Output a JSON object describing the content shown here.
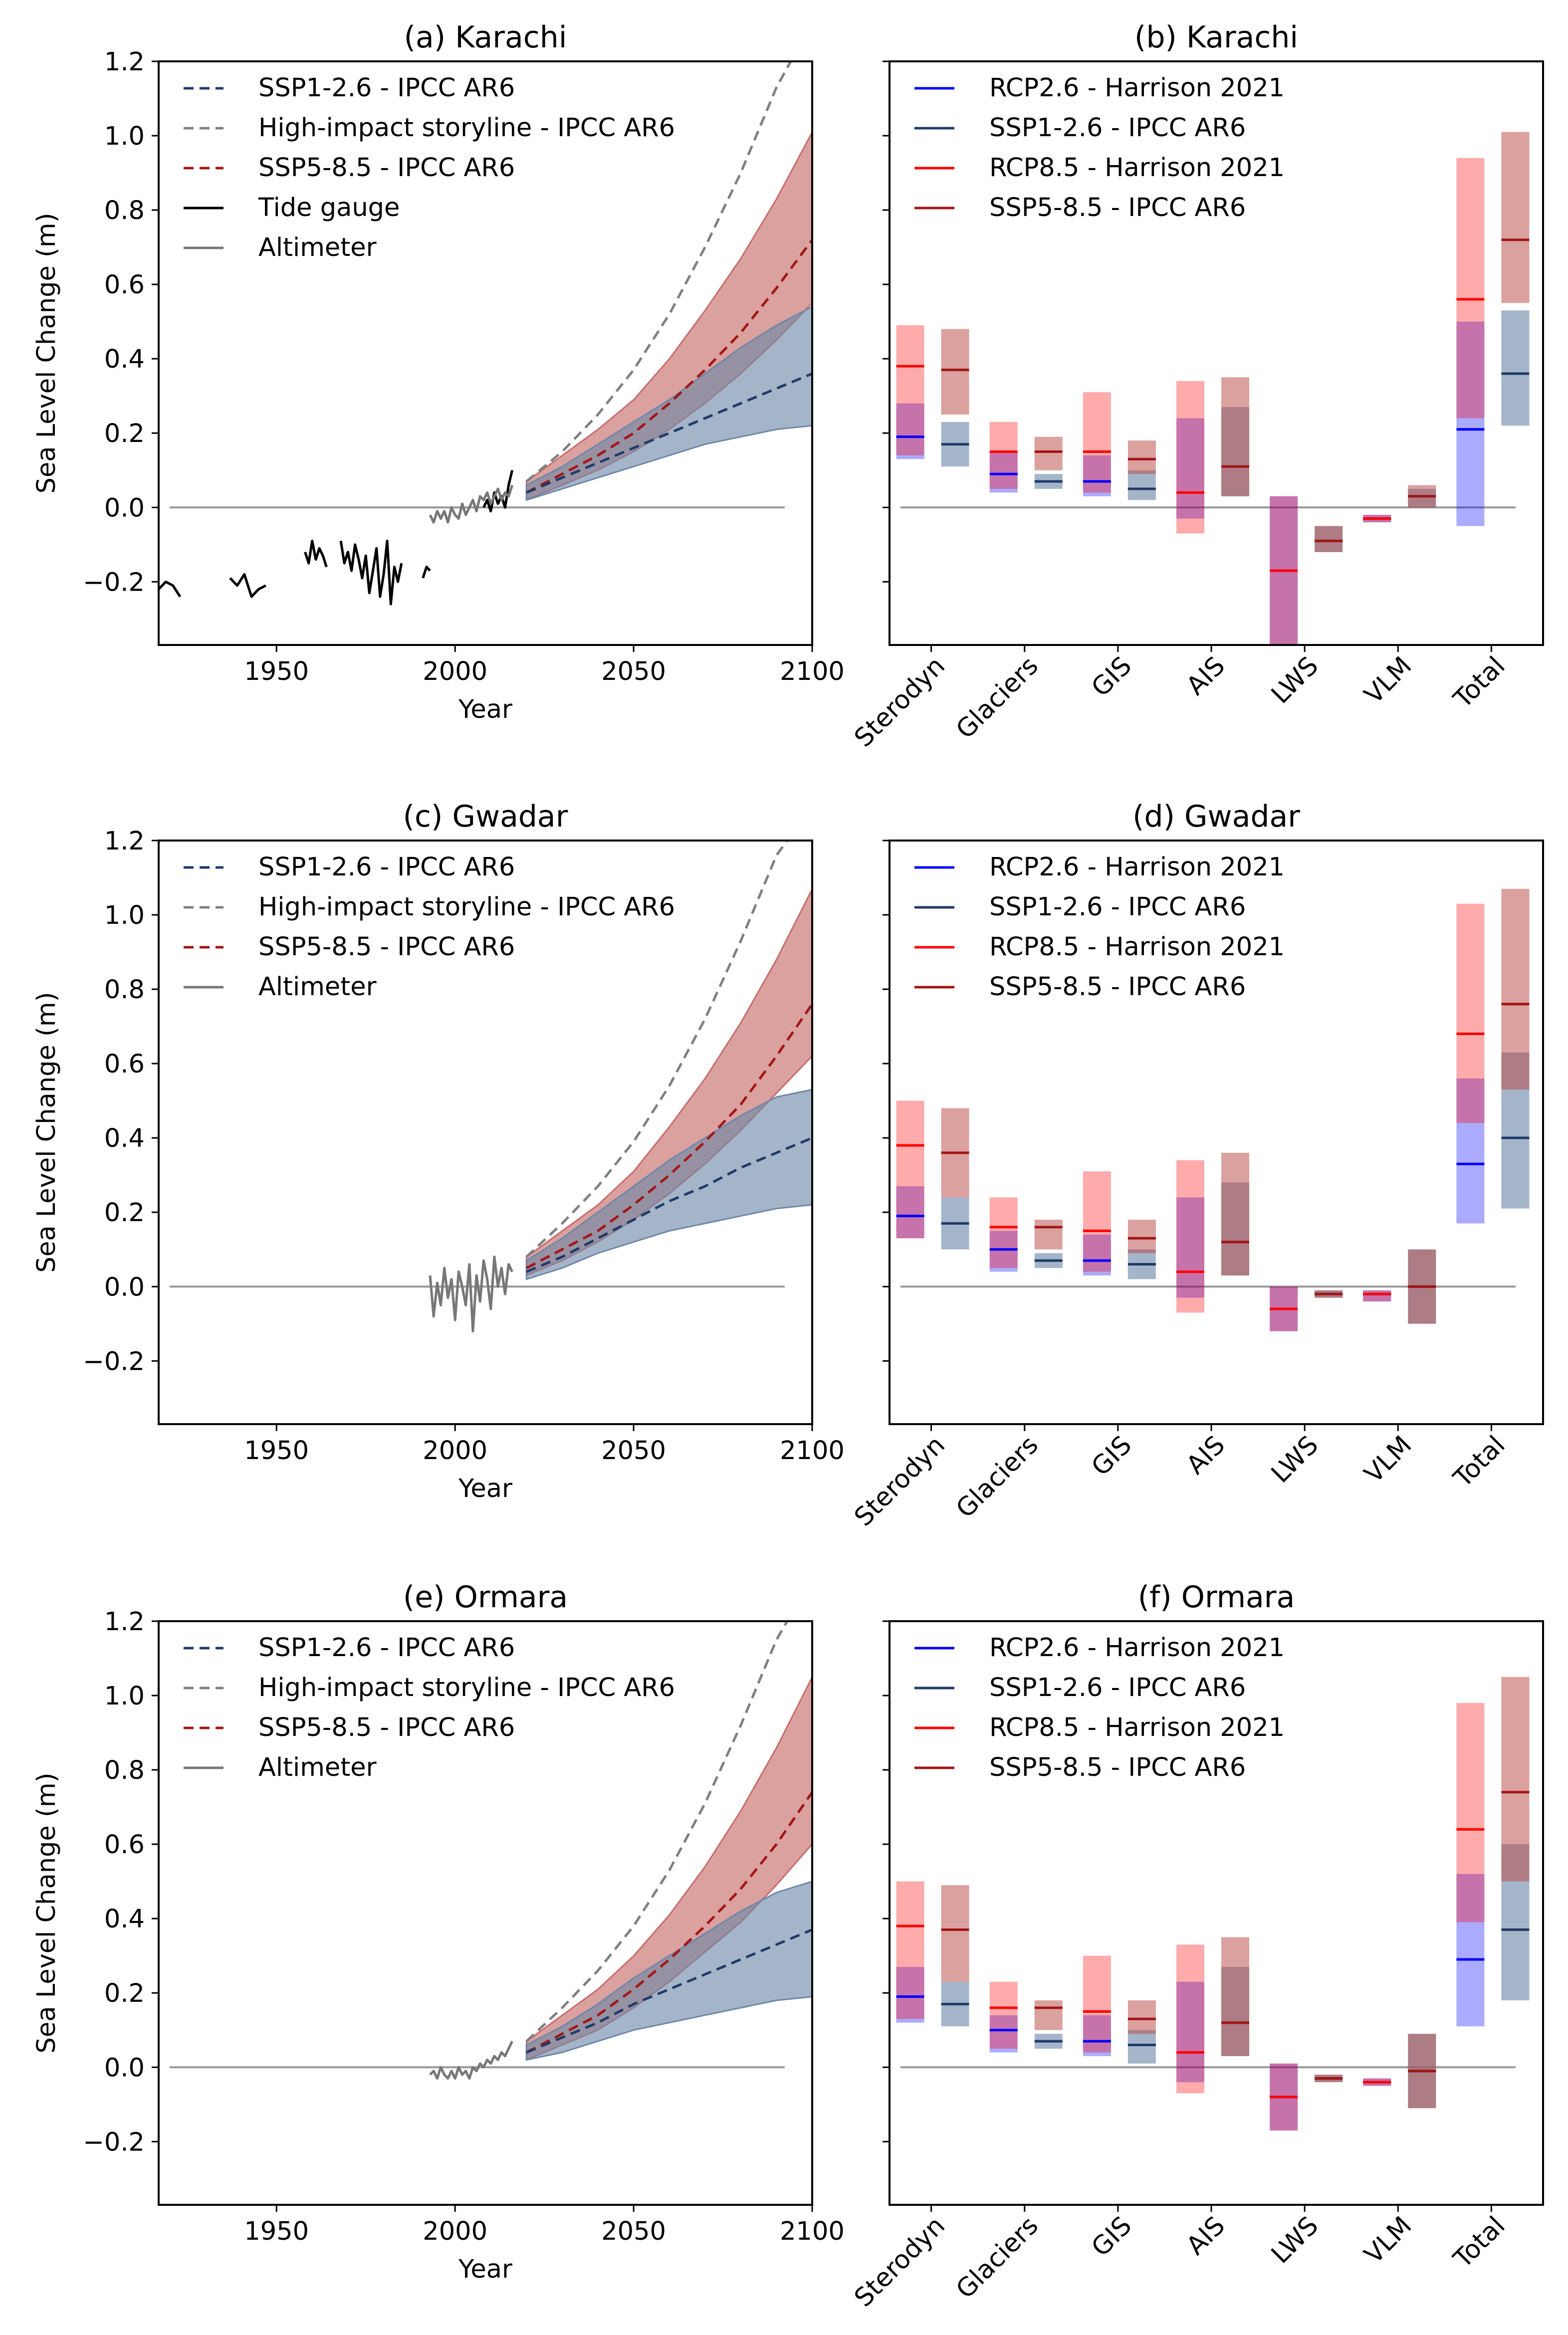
{
  "figure": {
    "ylabel": "Sea Level Change (m)",
    "xlabel": "Year",
    "yticks": [
      "1.2",
      "1.0",
      "0.8",
      "0.6",
      "0.4",
      "0.2",
      "0.0",
      "−0.2"
    ],
    "xticks": [
      "1950",
      "2000",
      "2050",
      "2100"
    ],
    "categories": [
      "Sterodyn",
      "Glaciers",
      "GIS",
      "AIS",
      "LWS",
      "VLM",
      "Total"
    ]
  },
  "colors": {
    "ssp126_line": "#1f3a68",
    "ssp126_fill": "#6d87a8",
    "ssp585_line": "#a31515",
    "ssp585_fill": "#b5443f",
    "highimpact": "#808080",
    "tide": "#000000",
    "altimeter": "#777777",
    "rcp26": "#0000ff",
    "rcp85": "#ff0000",
    "zero": "#999999"
  },
  "chart_data": [
    {
      "type": "line",
      "title": "(a) Karachi",
      "xlabel": "Year",
      "ylabel": "Sea Level Change (m)",
      "xlim": [
        1917,
        2100
      ],
      "ylim": [
        -0.37,
        1.2
      ],
      "legend": [
        "SSP1-2.6 - IPCC AR6",
        "High-impact storyline - IPCC AR6",
        "SSP5-8.5 - IPCC AR6",
        "Tide gauge",
        "Altimeter"
      ],
      "x": [
        2020,
        2030,
        2040,
        2050,
        2060,
        2070,
        2080,
        2090,
        2100
      ],
      "ssp126": {
        "median": [
          0.04,
          0.08,
          0.12,
          0.16,
          0.2,
          0.24,
          0.28,
          0.32,
          0.36
        ],
        "low": [
          0.02,
          0.05,
          0.08,
          0.11,
          0.14,
          0.17,
          0.19,
          0.21,
          0.22
        ],
        "high": [
          0.06,
          0.11,
          0.17,
          0.23,
          0.29,
          0.36,
          0.43,
          0.49,
          0.54
        ]
      },
      "ssp585": {
        "median": [
          0.04,
          0.09,
          0.14,
          0.2,
          0.28,
          0.37,
          0.47,
          0.59,
          0.72
        ],
        "low": [
          0.02,
          0.06,
          0.1,
          0.15,
          0.21,
          0.28,
          0.36,
          0.45,
          0.55
        ],
        "high": [
          0.07,
          0.14,
          0.21,
          0.29,
          0.4,
          0.53,
          0.67,
          0.83,
          1.01
        ]
      },
      "high_impact": {
        "x": [
          2020,
          2030,
          2040,
          2050,
          2060,
          2070,
          2080,
          2090,
          2094
        ],
        "y": [
          0.07,
          0.15,
          0.25,
          0.37,
          0.52,
          0.7,
          0.9,
          1.13,
          1.2
        ]
      },
      "tide_gauge": [
        {
          "x": [
            1917,
            1919,
            1921,
            1923
          ],
          "y": [
            -0.22,
            -0.2,
            -0.21,
            -0.24
          ]
        },
        {
          "x": [
            1937,
            1939,
            1941,
            1943,
            1945,
            1947
          ],
          "y": [
            -0.19,
            -0.21,
            -0.18,
            -0.24,
            -0.22,
            -0.21
          ]
        },
        {
          "x": [
            1958,
            1959,
            1960,
            1961,
            1962,
            1963,
            1964
          ],
          "y": [
            -0.12,
            -0.15,
            -0.09,
            -0.14,
            -0.11,
            -0.13,
            -0.16
          ]
        },
        {
          "x": [
            1968,
            1969,
            1970,
            1971,
            1972,
            1973,
            1974,
            1975,
            1976,
            1977,
            1978,
            1979,
            1980,
            1981,
            1982,
            1983,
            1984,
            1985
          ],
          "y": [
            -0.09,
            -0.15,
            -0.12,
            -0.17,
            -0.1,
            -0.14,
            -0.19,
            -0.13,
            -0.23,
            -0.17,
            -0.11,
            -0.24,
            -0.18,
            -0.09,
            -0.26,
            -0.16,
            -0.2,
            -0.15
          ]
        },
        {
          "x": [
            1991,
            1992,
            1993
          ],
          "y": [
            -0.19,
            -0.16,
            -0.17
          ]
        },
        {
          "x": [
            2008,
            2009,
            2010,
            2011,
            2012,
            2013,
            2014,
            2015,
            2016
          ],
          "y": [
            0.0,
            0.02,
            -0.01,
            0.04,
            0.01,
            0.03,
            0.0,
            0.06,
            0.1
          ]
        }
      ],
      "altimeter": {
        "x": [
          1993,
          1994,
          1995,
          1996,
          1997,
          1998,
          1999,
          2000,
          2001,
          2002,
          2003,
          2004,
          2005,
          2006,
          2007,
          2008,
          2009,
          2010,
          2011,
          2012,
          2013,
          2014,
          2015,
          2016
        ],
        "y": [
          -0.02,
          -0.04,
          -0.01,
          -0.03,
          -0.01,
          -0.04,
          0.0,
          -0.02,
          -0.03,
          0.01,
          -0.02,
          0.0,
          0.02,
          -0.01,
          0.03,
          0.02,
          0.04,
          0.01,
          0.03,
          0.05,
          0.02,
          0.04,
          0.03,
          0.06
        ]
      }
    },
    {
      "type": "bar",
      "title": "(b) Karachi",
      "ylim": [
        -0.37,
        1.2
      ],
      "categories": [
        "Sterodyn",
        "Glaciers",
        "GIS",
        "AIS",
        "LWS",
        "VLM",
        "Total"
      ],
      "legend": [
        "RCP2.6 - Harrison 2021",
        "SSP1-2.6 - IPCC AR6",
        "RCP8.5 - Harrison 2021",
        "SSP5-8.5 - IPCC AR6"
      ],
      "series": [
        {
          "name": "RCP2.6 - Harrison 2021",
          "low": [
            0.13,
            0.04,
            0.03,
            -0.03,
            -0.37,
            -0.04,
            -0.05
          ],
          "median": [
            0.19,
            0.09,
            0.07,
            0.04,
            -0.17,
            -0.03,
            0.21
          ],
          "high": [
            0.28,
            0.15,
            0.14,
            0.24,
            0.03,
            -0.02,
            0.5
          ]
        },
        {
          "name": "SSP1-2.6 - IPCC AR6",
          "low": [
            0.11,
            0.05,
            0.02,
            0.03,
            -0.12,
            0.0,
            0.22
          ],
          "median": [
            0.17,
            0.07,
            0.05,
            0.11,
            -0.09,
            0.03,
            0.36
          ],
          "high": [
            0.23,
            0.09,
            0.1,
            0.27,
            -0.05,
            0.05,
            0.53
          ]
        },
        {
          "name": "RCP8.5 - Harrison 2021",
          "low": [
            0.14,
            0.05,
            0.04,
            -0.07,
            -0.37,
            -0.04,
            0.24
          ],
          "median": [
            0.38,
            0.15,
            0.15,
            0.04,
            -0.17,
            -0.03,
            0.56
          ],
          "high": [
            0.49,
            0.23,
            0.31,
            0.34,
            0.03,
            -0.02,
            0.94
          ]
        },
        {
          "name": "SSP5-8.5 - IPCC AR6",
          "low": [
            0.25,
            0.1,
            0.09,
            0.03,
            -0.12,
            0.0,
            0.55
          ],
          "median": [
            0.37,
            0.15,
            0.13,
            0.11,
            -0.09,
            0.03,
            0.72
          ],
          "high": [
            0.48,
            0.19,
            0.18,
            0.35,
            -0.05,
            0.06,
            1.01
          ]
        }
      ]
    },
    {
      "type": "line",
      "title": "(c) Gwadar",
      "xlabel": "Year",
      "ylabel": "Sea Level Change (m)",
      "xlim": [
        1917,
        2100
      ],
      "ylim": [
        -0.37,
        1.2
      ],
      "legend": [
        "SSP1-2.6 - IPCC AR6",
        "High-impact storyline - IPCC AR6",
        "SSP5-8.5 - IPCC AR6",
        "Altimeter"
      ],
      "x": [
        2020,
        2030,
        2040,
        2050,
        2060,
        2070,
        2080,
        2090,
        2100
      ],
      "ssp126": {
        "median": [
          0.04,
          0.08,
          0.13,
          0.18,
          0.23,
          0.27,
          0.32,
          0.36,
          0.4
        ],
        "low": [
          0.02,
          0.05,
          0.09,
          0.12,
          0.15,
          0.17,
          0.19,
          0.21,
          0.22
        ],
        "high": [
          0.07,
          0.13,
          0.2,
          0.27,
          0.34,
          0.4,
          0.46,
          0.51,
          0.53
        ]
      },
      "ssp585": {
        "median": [
          0.05,
          0.1,
          0.15,
          0.22,
          0.3,
          0.39,
          0.49,
          0.62,
          0.76
        ],
        "low": [
          0.03,
          0.07,
          0.12,
          0.18,
          0.25,
          0.33,
          0.42,
          0.52,
          0.62
        ],
        "high": [
          0.08,
          0.15,
          0.22,
          0.31,
          0.43,
          0.56,
          0.71,
          0.88,
          1.07
        ]
      },
      "high_impact": {
        "x": [
          2020,
          2030,
          2040,
          2050,
          2060,
          2070,
          2080,
          2090,
          2093
        ],
        "y": [
          0.08,
          0.17,
          0.27,
          0.39,
          0.54,
          0.72,
          0.93,
          1.16,
          1.2
        ]
      },
      "tide_gauge": [],
      "altimeter": {
        "x": [
          1993,
          1994,
          1995,
          1996,
          1997,
          1998,
          1999,
          2000,
          2001,
          2002,
          2003,
          2004,
          2005,
          2006,
          2007,
          2008,
          2009,
          2010,
          2011,
          2012,
          2013,
          2014,
          2015,
          2016
        ],
        "y": [
          0.03,
          -0.08,
          0.01,
          -0.05,
          0.05,
          -0.03,
          0.02,
          -0.09,
          0.04,
          0.0,
          -0.05,
          0.06,
          -0.12,
          0.03,
          -0.04,
          0.07,
          0.02,
          -0.06,
          0.08,
          0.0,
          0.05,
          -0.02,
          0.06,
          0.04
        ]
      }
    },
    {
      "type": "bar",
      "title": "(d) Gwadar",
      "ylim": [
        -0.37,
        1.2
      ],
      "categories": [
        "Sterodyn",
        "Glaciers",
        "GIS",
        "AIS",
        "LWS",
        "VLM",
        "Total"
      ],
      "legend": [
        "RCP2.6 - Harrison 2021",
        "SSP1-2.6 - IPCC AR6",
        "RCP8.5 - Harrison 2021",
        "SSP5-8.5 - IPCC AR6"
      ],
      "series": [
        {
          "name": "RCP2.6 - Harrison 2021",
          "low": [
            0.13,
            0.04,
            0.03,
            -0.03,
            -0.12,
            -0.04,
            0.17
          ],
          "median": [
            0.19,
            0.1,
            0.07,
            0.04,
            -0.06,
            -0.02,
            0.33
          ],
          "high": [
            0.27,
            0.15,
            0.14,
            0.24,
            0.0,
            -0.01,
            0.56
          ]
        },
        {
          "name": "SSP1-2.6 - IPCC AR6",
          "low": [
            0.1,
            0.05,
            0.02,
            0.03,
            -0.03,
            -0.1,
            0.21
          ],
          "median": [
            0.17,
            0.07,
            0.06,
            0.12,
            -0.02,
            0.0,
            0.4
          ],
          "high": [
            0.24,
            0.09,
            0.1,
            0.28,
            -0.01,
            0.1,
            0.63
          ]
        },
        {
          "name": "RCP8.5 - Harrison 2021",
          "low": [
            0.13,
            0.05,
            0.04,
            -0.07,
            -0.12,
            -0.04,
            0.44
          ],
          "median": [
            0.38,
            0.16,
            0.15,
            0.04,
            -0.06,
            -0.02,
            0.68
          ],
          "high": [
            0.5,
            0.24,
            0.31,
            0.34,
            0.0,
            -0.01,
            1.03
          ]
        },
        {
          "name": "SSP5-8.5 - IPCC AR6",
          "low": [
            0.24,
            0.1,
            0.09,
            0.03,
            -0.03,
            -0.1,
            0.53
          ],
          "median": [
            0.36,
            0.16,
            0.13,
            0.12,
            -0.02,
            0.0,
            0.76
          ],
          "high": [
            0.48,
            0.18,
            0.18,
            0.36,
            -0.01,
            0.1,
            1.07
          ]
        }
      ]
    },
    {
      "type": "line",
      "title": "(e) Ormara",
      "xlabel": "Year",
      "ylabel": "Sea Level Change (m)",
      "xlim": [
        1917,
        2100
      ],
      "ylim": [
        -0.37,
        1.2
      ],
      "legend": [
        "SSP1-2.6 - IPCC AR6",
        "High-impact storyline - IPCC AR6",
        "SSP5-8.5 - IPCC AR6",
        "Altimeter"
      ],
      "x": [
        2020,
        2030,
        2040,
        2050,
        2060,
        2070,
        2080,
        2090,
        2100
      ],
      "ssp126": {
        "median": [
          0.04,
          0.08,
          0.12,
          0.17,
          0.21,
          0.25,
          0.29,
          0.33,
          0.37
        ],
        "low": [
          0.02,
          0.04,
          0.07,
          0.1,
          0.12,
          0.14,
          0.16,
          0.18,
          0.19
        ],
        "high": [
          0.06,
          0.11,
          0.17,
          0.24,
          0.3,
          0.36,
          0.42,
          0.47,
          0.5
        ]
      },
      "ssp585": {
        "median": [
          0.04,
          0.09,
          0.14,
          0.21,
          0.29,
          0.38,
          0.48,
          0.6,
          0.74
        ],
        "low": [
          0.02,
          0.06,
          0.1,
          0.16,
          0.23,
          0.31,
          0.39,
          0.49,
          0.6
        ],
        "high": [
          0.07,
          0.14,
          0.21,
          0.3,
          0.41,
          0.54,
          0.69,
          0.86,
          1.05
        ]
      },
      "high_impact": {
        "x": [
          2020,
          2030,
          2040,
          2050,
          2060,
          2070,
          2080,
          2090,
          2093
        ],
        "y": [
          0.07,
          0.16,
          0.26,
          0.38,
          0.53,
          0.71,
          0.92,
          1.15,
          1.2
        ]
      },
      "tide_gauge": [],
      "altimeter": {
        "x": [
          1993,
          1994,
          1995,
          1996,
          1997,
          1998,
          1999,
          2000,
          2001,
          2002,
          2003,
          2004,
          2005,
          2006,
          2007,
          2008,
          2009,
          2010,
          2011,
          2012,
          2013,
          2014,
          2015,
          2016
        ],
        "y": [
          -0.02,
          -0.01,
          -0.03,
          0.0,
          -0.02,
          -0.03,
          -0.01,
          -0.03,
          0.0,
          -0.02,
          -0.01,
          -0.03,
          0.0,
          -0.01,
          0.01,
          0.0,
          0.02,
          0.01,
          0.03,
          0.02,
          0.04,
          0.03,
          0.05,
          0.07
        ]
      }
    },
    {
      "type": "bar",
      "title": "(f) Ormara",
      "ylim": [
        -0.37,
        1.2
      ],
      "categories": [
        "Sterodyn",
        "Glaciers",
        "GIS",
        "AIS",
        "LWS",
        "VLM",
        "Total"
      ],
      "legend": [
        "RCP2.6 - Harrison 2021",
        "SSP1-2.6 - IPCC AR6",
        "RCP8.5 - Harrison 2021",
        "SSP5-8.5 - IPCC AR6"
      ],
      "series": [
        {
          "name": "RCP2.6 - Harrison 2021",
          "low": [
            0.12,
            0.04,
            0.03,
            -0.04,
            -0.17,
            -0.05,
            0.11
          ],
          "median": [
            0.19,
            0.1,
            0.07,
            0.04,
            -0.08,
            -0.04,
            0.29
          ],
          "high": [
            0.27,
            0.14,
            0.14,
            0.23,
            0.01,
            -0.03,
            0.52
          ]
        },
        {
          "name": "SSP1-2.6 - IPCC AR6",
          "low": [
            0.11,
            0.05,
            0.01,
            0.03,
            -0.04,
            -0.11,
            0.18
          ],
          "median": [
            0.17,
            0.07,
            0.06,
            0.12,
            -0.03,
            -0.01,
            0.37
          ],
          "high": [
            0.23,
            0.09,
            0.1,
            0.27,
            -0.02,
            0.09,
            0.6
          ]
        },
        {
          "name": "RCP8.5 - Harrison 2021",
          "low": [
            0.13,
            0.05,
            0.04,
            -0.07,
            -0.17,
            -0.05,
            0.39
          ],
          "median": [
            0.38,
            0.16,
            0.15,
            0.04,
            -0.08,
            -0.04,
            0.64
          ],
          "high": [
            0.5,
            0.23,
            0.3,
            0.33,
            0.01,
            -0.03,
            0.98
          ]
        },
        {
          "name": "SSP5-8.5 - IPCC AR6",
          "low": [
            0.23,
            0.1,
            0.09,
            0.03,
            -0.04,
            -0.11,
            0.5
          ],
          "median": [
            0.37,
            0.16,
            0.13,
            0.12,
            -0.03,
            -0.01,
            0.74
          ],
          "high": [
            0.49,
            0.18,
            0.18,
            0.35,
            -0.02,
            0.09,
            1.05
          ]
        }
      ]
    }
  ]
}
